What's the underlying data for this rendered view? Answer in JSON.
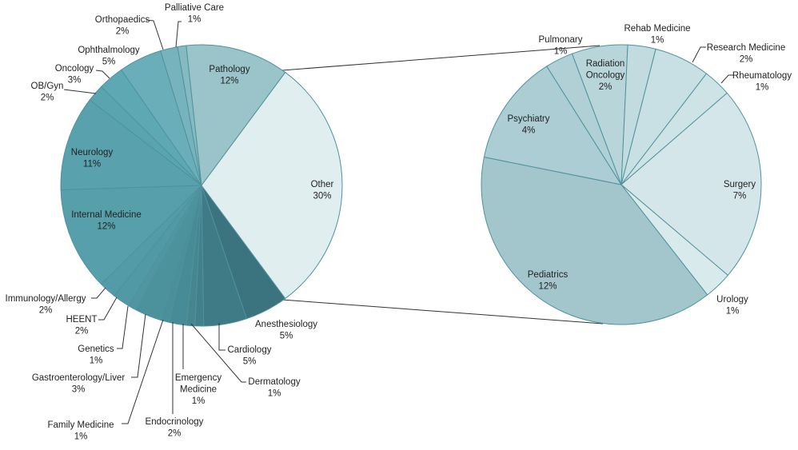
{
  "chart_data": [
    {
      "type": "pie",
      "name": "main",
      "title": "",
      "slices": [
        {
          "label": "Anesthesiology",
          "pct": "5%",
          "value": 5,
          "color": "#3b737e"
        },
        {
          "label": "Cardiology",
          "pct": "5%",
          "value": 5,
          "color": "#3f7b86"
        },
        {
          "label": "Dermatology",
          "pct": "1%",
          "value": 1,
          "color": "#42818c"
        },
        {
          "label": "Emergency Medicine",
          "pct": "1%",
          "value": 1,
          "color": "#45868f"
        },
        {
          "label": "Endocrinology",
          "pct": "2%",
          "value": 2,
          "color": "#478b96"
        },
        {
          "label": "Family Medicine",
          "pct": "1%",
          "value": 1,
          "color": "#4a8f99"
        },
        {
          "label": "Gastroenterology/Liver",
          "pct": "3%",
          "value": 3,
          "color": "#4c929c"
        },
        {
          "label": "Genetics",
          "pct": "1%",
          "value": 1,
          "color": "#4f96a1"
        },
        {
          "label": "HEENT",
          "pct": "2%",
          "value": 2,
          "color": "#5199a4"
        },
        {
          "label": "Immunology/Allergy",
          "pct": "2%",
          "value": 2,
          "color": "#539ca7"
        },
        {
          "label": "Internal Medicine",
          "pct": "12%",
          "value": 12,
          "color": "#569fab"
        },
        {
          "label": "Neurology",
          "pct": "11%",
          "value": 11,
          "color": "#58a1ad"
        },
        {
          "label": "OB/Gyn",
          "pct": "2%",
          "value": 2,
          "color": "#5aa4b0"
        },
        {
          "label": "Oncology",
          "pct": "3%",
          "value": 3,
          "color": "#5ea8b4"
        },
        {
          "label": "Ophthalmology",
          "pct": "5%",
          "value": 5,
          "color": "#6aaeb9"
        },
        {
          "label": "Orthopaedics",
          "pct": "2%",
          "value": 2,
          "color": "#77b3bd"
        },
        {
          "label": "Palliative Care",
          "pct": "1%",
          "value": 1,
          "color": "#86bac3"
        },
        {
          "label": "Pathology",
          "pct": "12%",
          "value": 12,
          "color": "#9ac3ca"
        },
        {
          "label": "Other",
          "pct": "30%",
          "value": 30,
          "color": "#e1eef0"
        }
      ]
    },
    {
      "type": "pie",
      "name": "other-breakdown",
      "title": "",
      "slices": [
        {
          "label": "Pediatrics",
          "pct": "12%",
          "value": 12,
          "color": "#a3c6cd"
        },
        {
          "label": "Psychiatry",
          "pct": "4%",
          "value": 4,
          "color": "#abcdd3"
        },
        {
          "label": "Pulmonary",
          "pct": "1%",
          "value": 1,
          "color": "#b1d0d6"
        },
        {
          "label": "Radiation Oncology",
          "pct": "2%",
          "value": 2,
          "color": "#b8d5da"
        },
        {
          "label": "Rehab Medicine",
          "pct": "1%",
          "value": 1,
          "color": "#c1dbdf"
        },
        {
          "label": "Research Medicine",
          "pct": "2%",
          "value": 2,
          "color": "#c8dfe3"
        },
        {
          "label": "Rheumatology",
          "pct": "1%",
          "value": 1,
          "color": "#cee3e6"
        },
        {
          "label": "Surgery",
          "pct": "7%",
          "value": 7,
          "color": "#d4e6e9"
        },
        {
          "label": "Urology",
          "pct": "1%",
          "value": 1,
          "color": "#d9eaec"
        }
      ]
    }
  ]
}
